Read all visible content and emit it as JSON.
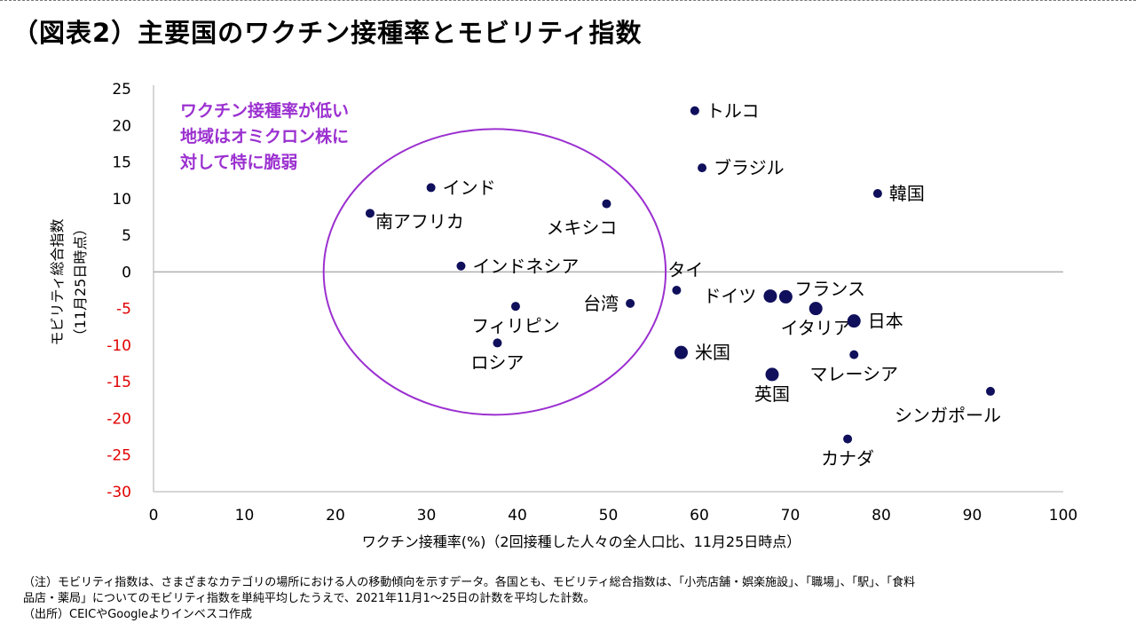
{
  "title": "（図表2）主要国のワクチン接種率とモビリティ指数",
  "chart_data": {
    "type": "scatter",
    "title": "（図表2）主要国のワクチン接種率とモビリティ指数",
    "xlabel": "ワクチン接種率(%)（2回接種した人々の全人口比、11月25日時点）",
    "ylabel_line1": "モビリティ総合指数",
    "ylabel_line2": "（11月25日時点）",
    "xlim": [
      0,
      100
    ],
    "ylim": [
      -30,
      25
    ],
    "xticks": [
      0,
      10,
      20,
      30,
      40,
      50,
      60,
      70,
      80,
      90,
      100
    ],
    "yticks": [
      25,
      20,
      15,
      10,
      5,
      0,
      -5,
      -10,
      -15,
      -20,
      -25,
      -30
    ],
    "xtick_labels": [
      "0",
      "10",
      "20",
      "30",
      "40",
      "50",
      "60",
      "70",
      "80",
      "90",
      "100"
    ],
    "ytick_labels": [
      "25",
      "20",
      "15",
      "10",
      "5",
      "0",
      "-5",
      "-10",
      "-15",
      "-20",
      "-25",
      "-30"
    ],
    "colors": {
      "point": "#0f0f5c",
      "negative_tick": "#e00000",
      "annotation": "#9b30d0",
      "zero_line": "#b0b0b0",
      "axis": "#c8c8c8"
    },
    "points": [
      {
        "label": "トルコ",
        "x": 59.5,
        "y": 22.0,
        "big": false,
        "label_pos": "right"
      },
      {
        "label": "ブラジル",
        "x": 60.3,
        "y": 14.2,
        "big": false,
        "label_pos": "right"
      },
      {
        "label": "韓国",
        "x": 79.6,
        "y": 10.7,
        "big": false,
        "label_pos": "right"
      },
      {
        "label": "インド",
        "x": 30.5,
        "y": 11.5,
        "big": false,
        "label_pos": "right"
      },
      {
        "label": "南アフリカ",
        "x": 23.8,
        "y": 8.0,
        "big": false,
        "label_pos": "right-below"
      },
      {
        "label": "メキシコ",
        "x": 49.8,
        "y": 9.3,
        "big": false,
        "label_pos": "below-left"
      },
      {
        "label": "インドネシア",
        "x": 33.8,
        "y": 0.8,
        "big": false,
        "label_pos": "right"
      },
      {
        "label": "タイ",
        "x": 57.5,
        "y": -2.5,
        "big": false,
        "label_pos": "above"
      },
      {
        "label": "台湾",
        "x": 52.4,
        "y": -4.3,
        "big": false,
        "label_pos": "left"
      },
      {
        "label": "フィリピン",
        "x": 39.8,
        "y": -4.7,
        "big": false,
        "label_pos": "below"
      },
      {
        "label": "ロシア",
        "x": 37.8,
        "y": -9.7,
        "big": false,
        "label_pos": "below"
      },
      {
        "label": "ドイツ",
        "x": 67.8,
        "y": -3.3,
        "big": true,
        "label_pos": "left"
      },
      {
        "label": "フランス",
        "x": 69.5,
        "y": -3.4,
        "big": true,
        "label_pos": "above-right"
      },
      {
        "label": "イタリア",
        "x": 72.8,
        "y": -5.0,
        "big": true,
        "label_pos": "below"
      },
      {
        "label": "日本",
        "x": 77.0,
        "y": -6.7,
        "big": true,
        "label_pos": "right"
      },
      {
        "label": "米国",
        "x": 58.0,
        "y": -11.0,
        "big": true,
        "label_pos": "right"
      },
      {
        "label": "マレーシア",
        "x": 77.0,
        "y": -11.3,
        "big": false,
        "label_pos": "below"
      },
      {
        "label": "英国",
        "x": 68.0,
        "y": -14.0,
        "big": true,
        "label_pos": "below"
      },
      {
        "label": "シンガポール",
        "x": 92.0,
        "y": -16.3,
        "big": false,
        "label_pos": "below-left"
      },
      {
        "label": "カナダ",
        "x": 76.3,
        "y": -22.8,
        "big": false,
        "label_pos": "below"
      }
    ],
    "annotation": {
      "lines": [
        "ワクチン接種率が低い",
        "地域はオミクロン株に",
        "対して特に脆弱"
      ],
      "ellipse": {
        "cx": 37.5,
        "cy": 0,
        "rx": 18.8,
        "ry": 19.5
      }
    }
  },
  "notes": [
    "（注）モビリティ指数は、さまざまなカテゴリの場所における人の移動傾向を示すデータ。各国とも、モビリティ総合指数は、「小売店舗・娯楽施設」、「職場」、「駅」、「食料",
    "品店・薬局」についてのモビリティ指数を単純平均したうえで、2021年11月1～25日の計数を平均した計数。",
    "（出所）CEICやGoogleよりインベスコ作成"
  ]
}
